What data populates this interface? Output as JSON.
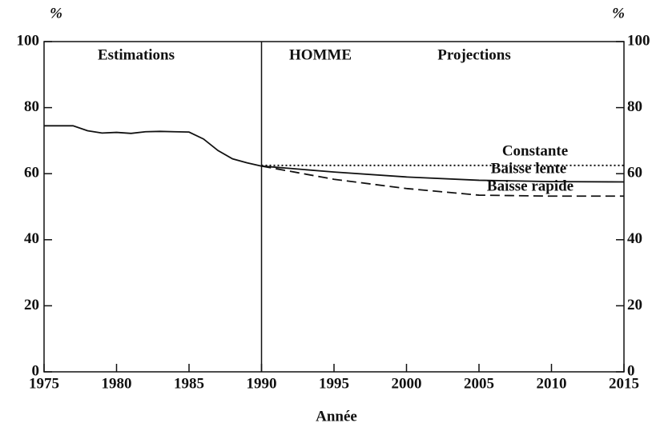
{
  "chart_data": {
    "type": "line",
    "ylabel": "%",
    "y2label": "%",
    "xlabel": "Année",
    "annotations": [
      "Estimations",
      "HOMME",
      "Projections"
    ],
    "divider_x": 1990,
    "xlim": [
      1975,
      2015
    ],
    "xticks": [
      1975,
      1980,
      1985,
      1990,
      1995,
      2000,
      2005,
      2010,
      2015
    ],
    "ylim": [
      0,
      100
    ],
    "yticks": [
      0,
      20,
      40,
      60,
      80,
      100
    ],
    "y2lim": [
      0,
      100
    ],
    "y2ticks": [
      0,
      20,
      40,
      60,
      80,
      100
    ],
    "series": [
      {
        "style": "solid",
        "color": "#111",
        "x": [
          1975,
          1976,
          1977,
          1978,
          1979,
          1980,
          1981,
          1982,
          1983,
          1984,
          1985,
          1986,
          1987,
          1988,
          1989,
          1990
        ],
        "values": [
          74.5,
          74.5,
          74.5,
          73,
          72.3,
          72.5,
          72.2,
          72.7,
          72.8,
          72.7,
          72.6,
          70.5,
          67,
          64.5,
          63.3,
          62.3
        ]
      },
      {
        "name": "Constante",
        "style": "dotted",
        "color": "#111",
        "x": [
          1990,
          1995,
          2000,
          2005,
          2010,
          2015
        ],
        "values": [
          62.5,
          62.5,
          62.5,
          62.5,
          62.5,
          62.5
        ]
      },
      {
        "name": "Baisse lente",
        "style": "solid",
        "color": "#111",
        "x": [
          1990,
          1995,
          2000,
          2005,
          2010,
          2015
        ],
        "values": [
          62.3,
          60.5,
          59,
          58,
          57.6,
          57.5
        ]
      },
      {
        "name": "Baisse rapide",
        "style": "dashed",
        "color": "#111",
        "x": [
          1990,
          1995,
          2000,
          2005,
          2010,
          2015
        ],
        "values": [
          62.3,
          58.3,
          55.5,
          53.5,
          53.2,
          53.2
        ]
      }
    ]
  }
}
